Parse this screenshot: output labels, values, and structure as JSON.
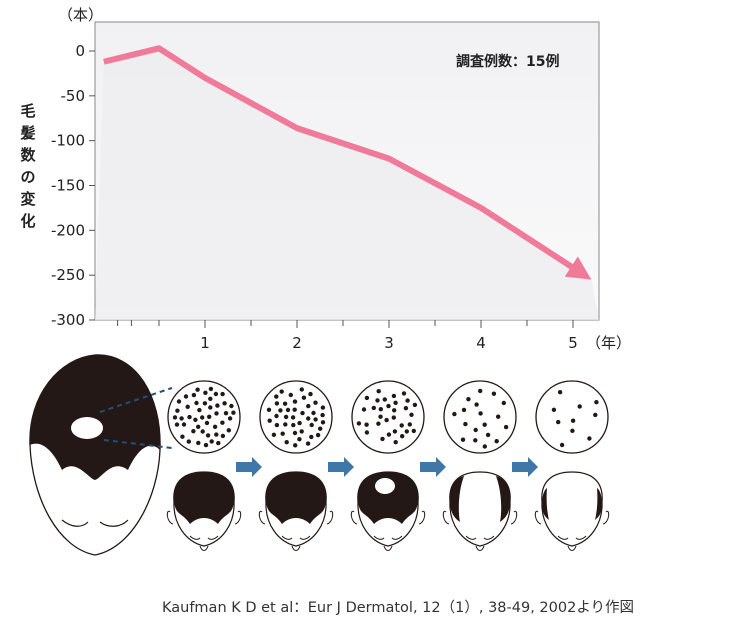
{
  "chart_data": {
    "type": "line",
    "ylabel": "毛髪数の変化",
    "yunit": "（本）",
    "xunit": "（年）",
    "note": "調査例数：15例",
    "x": [
      -0.1,
      0.5,
      1,
      2,
      3,
      4,
      5.2
    ],
    "y": [
      -12,
      3,
      -30,
      -86,
      -120,
      -175,
      -255
    ],
    "xticks": [
      1,
      2,
      3,
      4,
      5
    ],
    "yticks": [
      0,
      -50,
      -100,
      -150,
      -200,
      -250,
      -300
    ],
    "ylim": [
      -300,
      20
    ],
    "xlim": [
      -0.1,
      5.2
    ],
    "line_color": "#f07a9a",
    "grid": false
  },
  "citation": "Kaufman K D et al：Eur J Dermatol, 12（1）, 38-49, 2002より作図",
  "illustration": {
    "follicle_dots_per_stage": [
      46,
      42,
      32,
      18,
      10
    ],
    "arrow_color": "#3f78a8",
    "hair_color": "#231815"
  }
}
